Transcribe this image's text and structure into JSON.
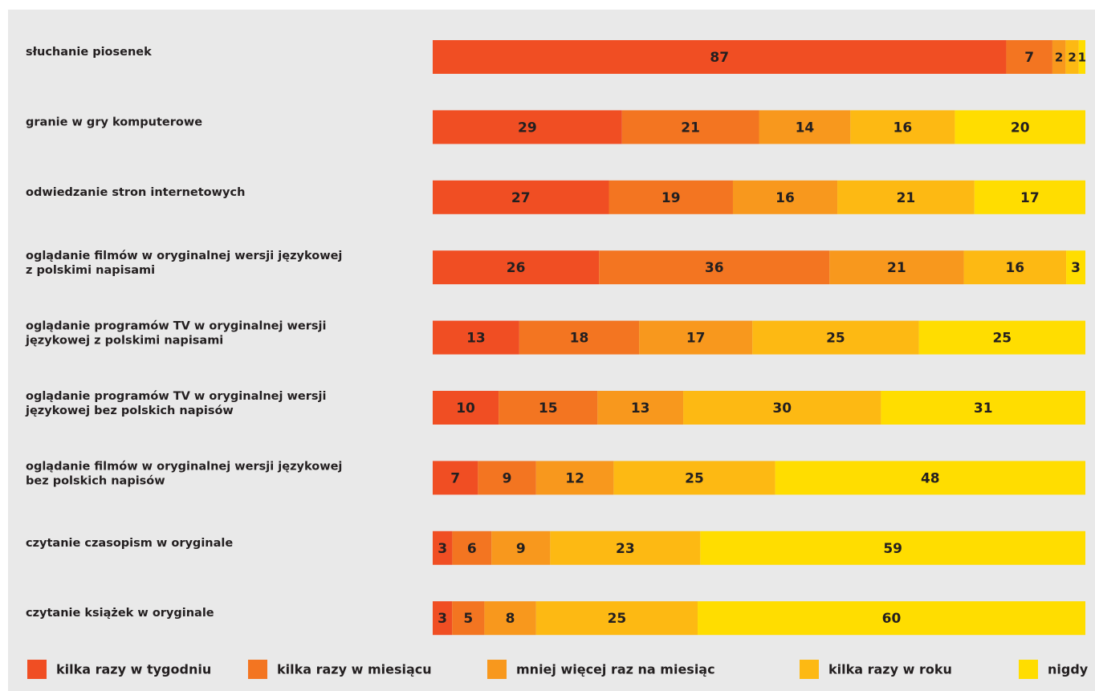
{
  "chart_data": {
    "type": "bar",
    "orientation": "horizontal",
    "stacked": true,
    "categories": [
      "słuchanie piosenek",
      "granie w gry komputerowe",
      "odwiedzanie stron internetowych",
      "oglądanie filmów w oryginalnej wersji językowej z polskimi napisami",
      "oglądanie programów TV w oryginalnej wersji językowej z polskimi napisami",
      "oglądanie programów TV w oryginalnej wersji językowej bez polskich napisów",
      "oglądanie filmów w oryginalnej wersji językowej bez polskich napisów",
      "czytanie czasopism w oryginale",
      "czytanie książek w oryginale"
    ],
    "category_lines": [
      [
        "słuchanie piosenek"
      ],
      [
        "granie w gry komputerowe"
      ],
      [
        "odwiedzanie stron internetowych"
      ],
      [
        "oglądanie filmów w oryginalnej wersji językowej",
        "z polskimi napisami"
      ],
      [
        "oglądanie programów TV w oryginalnej wersji",
        "językowej z polskimi napisami"
      ],
      [
        "oglądanie programów TV w oryginalnej wersji",
        "językowej bez polskich napisów"
      ],
      [
        "oglądanie filmów w oryginalnej wersji językowej",
        "bez polskich napisów"
      ],
      [
        "czytanie czasopism w oryginale"
      ],
      [
        "czytanie książek w oryginale"
      ]
    ],
    "series": [
      {
        "name": "kilka razy w tygodniu",
        "color": "#f04e23",
        "values": [
          87,
          29,
          27,
          26,
          13,
          10,
          7,
          3,
          3
        ]
      },
      {
        "name": "kilka razy w miesiącu",
        "color": "#f37521",
        "values": [
          7,
          21,
          19,
          36,
          18,
          15,
          9,
          6,
          5
        ]
      },
      {
        "name": "mniej więcej raz na miesiąc",
        "color": "#f8981d",
        "values": [
          2,
          14,
          16,
          21,
          17,
          13,
          12,
          9,
          8
        ]
      },
      {
        "name": "kilka razy w roku",
        "color": "#fdb913",
        "values": [
          2,
          16,
          21,
          16,
          25,
          30,
          25,
          23,
          25
        ]
      },
      {
        "name": "nigdy",
        "color": "#ffdd00",
        "values": [
          1,
          20,
          17,
          3,
          25,
          31,
          48,
          59,
          60
        ]
      }
    ],
    "legend_position": "bottom",
    "grid": false,
    "background_color": "#e9e9e9",
    "label_color": "#231f20"
  }
}
